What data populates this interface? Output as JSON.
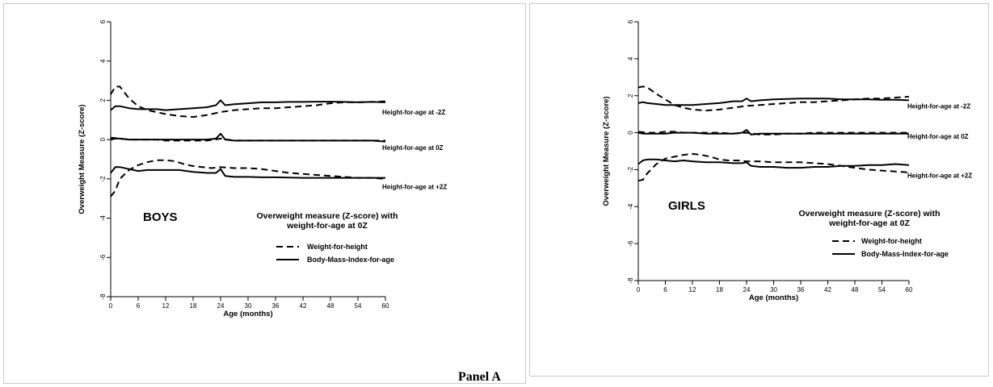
{
  "caption": "Panel A",
  "chart_data": [
    {
      "type": "line",
      "panel_label": "BOYS",
      "xlabel": "Age (months)",
      "ylabel": "Overweight Measure (Z-score)",
      "xlim": [
        0,
        60
      ],
      "ylim": [
        -8,
        6
      ],
      "xticks": [
        0,
        6,
        12,
        18,
        24,
        30,
        36,
        42,
        48,
        54,
        60
      ],
      "yticks": [
        -8,
        -6,
        -4,
        -2,
        0,
        2,
        4,
        6
      ],
      "legend": {
        "title": [
          "Overweight measure (Z-score) with",
          "weight-for-age at 0Z"
        ],
        "entries": [
          {
            "label": "Weight-for-height",
            "style": "dashed"
          },
          {
            "label": "Body-Mass-Index-for-age",
            "style": "solid"
          }
        ]
      },
      "curve_labels": [
        {
          "text": "Height-for-age at -2Z",
          "y": 1.4
        },
        {
          "text": "Height-for-age at 0Z",
          "y": -0.4
        },
        {
          "text": "Height-for-age at +2Z",
          "y": -2.4
        }
      ],
      "series": [
        {
          "style": "dashed",
          "x": [
            0,
            1,
            2,
            4,
            6,
            8,
            10,
            12,
            15,
            18,
            21,
            24,
            27,
            30,
            33,
            36,
            39,
            42,
            45,
            48,
            51,
            54,
            57,
            60
          ],
          "y": [
            2.3,
            2.7,
            2.7,
            2.1,
            1.7,
            1.5,
            1.4,
            1.3,
            1.2,
            1.15,
            1.25,
            1.4,
            1.5,
            1.55,
            1.6,
            1.6,
            1.65,
            1.7,
            1.75,
            1.85,
            1.9,
            1.9,
            1.92,
            1.95
          ]
        },
        {
          "style": "solid",
          "x": [
            0,
            1,
            2,
            4,
            6,
            8,
            10,
            12,
            15,
            18,
            21,
            23,
            24,
            25,
            27,
            30,
            33,
            36,
            39,
            42,
            45,
            48,
            51,
            54,
            57,
            60
          ],
          "y": [
            1.5,
            1.7,
            1.7,
            1.6,
            1.55,
            1.55,
            1.55,
            1.5,
            1.55,
            1.6,
            1.65,
            1.75,
            2.0,
            1.75,
            1.8,
            1.85,
            1.9,
            1.9,
            1.92,
            1.92,
            1.93,
            1.93,
            1.92,
            1.9,
            1.92,
            1.9
          ]
        },
        {
          "style": "dashed",
          "x": [
            0,
            2,
            4,
            6,
            8,
            10,
            12,
            15,
            18,
            21,
            24,
            27,
            30,
            33,
            36,
            39,
            42,
            45,
            48,
            51,
            54,
            57,
            60
          ],
          "y": [
            0.1,
            0.05,
            0.0,
            0.0,
            0.0,
            0.0,
            -0.05,
            -0.05,
            -0.05,
            -0.05,
            0.05,
            -0.05,
            -0.05,
            -0.05,
            -0.05,
            -0.05,
            -0.05,
            -0.05,
            -0.05,
            -0.05,
            -0.05,
            -0.05,
            -0.05
          ]
        },
        {
          "style": "solid",
          "x": [
            0,
            1,
            2,
            4,
            6,
            8,
            10,
            12,
            15,
            18,
            21,
            23,
            24,
            25,
            27,
            30,
            33,
            36,
            39,
            42,
            45,
            48,
            51,
            54,
            57,
            60
          ],
          "y": [
            0.0,
            0.05,
            0.05,
            0.0,
            0.0,
            0.0,
            0.0,
            0.0,
            0.0,
            0.0,
            0.0,
            0.05,
            0.3,
            0.0,
            -0.05,
            -0.05,
            -0.05,
            -0.05,
            -0.05,
            -0.05,
            -0.05,
            -0.05,
            -0.05,
            -0.05,
            -0.05,
            -0.1
          ]
        },
        {
          "style": "dashed",
          "x": [
            0,
            1,
            2,
            4,
            6,
            8,
            10,
            12,
            14,
            16,
            18,
            20,
            22,
            24,
            27,
            30,
            33,
            36,
            39,
            42,
            45,
            48,
            51,
            54,
            57,
            60
          ],
          "y": [
            -2.9,
            -2.6,
            -2.0,
            -1.55,
            -1.3,
            -1.15,
            -1.05,
            -1.05,
            -1.1,
            -1.25,
            -1.35,
            -1.4,
            -1.45,
            -1.4,
            -1.45,
            -1.45,
            -1.5,
            -1.6,
            -1.7,
            -1.75,
            -1.8,
            -1.85,
            -1.9,
            -1.95,
            -1.95,
            -2.0
          ]
        },
        {
          "style": "solid",
          "x": [
            0,
            1,
            2,
            4,
            6,
            8,
            10,
            12,
            15,
            18,
            21,
            23,
            24,
            25,
            27,
            30,
            33,
            36,
            39,
            42,
            45,
            48,
            51,
            54,
            57,
            60
          ],
          "y": [
            -1.7,
            -1.4,
            -1.4,
            -1.5,
            -1.6,
            -1.55,
            -1.55,
            -1.55,
            -1.55,
            -1.65,
            -1.7,
            -1.7,
            -1.5,
            -1.85,
            -1.9,
            -1.9,
            -1.92,
            -1.92,
            -1.93,
            -1.95,
            -1.95,
            -1.95,
            -1.95,
            -1.95,
            -1.95,
            -1.95
          ]
        }
      ]
    },
    {
      "type": "line",
      "panel_label": "GIRLS",
      "xlabel": "Age (months)",
      "ylabel": "Overweight Measure (Z-score)",
      "xlim": [
        0,
        60
      ],
      "ylim": [
        -8,
        6
      ],
      "xticks": [
        0,
        6,
        12,
        18,
        24,
        30,
        36,
        42,
        48,
        54,
        60
      ],
      "yticks": [
        -8,
        -6,
        -4,
        -2,
        0,
        2,
        4,
        6
      ],
      "legend": {
        "title": [
          "Overweight measure (Z-score) with",
          "weight-for-age at 0Z"
        ],
        "entries": [
          {
            "label": "Weight-for-height",
            "style": "dashed"
          },
          {
            "label": "Body-Mass-Index-for-age",
            "style": "solid"
          }
        ]
      },
      "curve_labels": [
        {
          "text": "Height-for-age at -2Z",
          "y": 1.45
        },
        {
          "text": "Height-for-age at 0Z",
          "y": -0.2
        },
        {
          "text": "Height-for-age at +2Z",
          "y": -2.3
        }
      ],
      "series": [
        {
          "style": "dashed",
          "x": [
            0,
            1,
            2,
            4,
            6,
            8,
            10,
            12,
            15,
            18,
            21,
            24,
            27,
            30,
            33,
            36,
            39,
            42,
            45,
            48,
            51,
            54,
            57,
            60
          ],
          "y": [
            2.45,
            2.5,
            2.45,
            2.1,
            1.8,
            1.5,
            1.35,
            1.25,
            1.2,
            1.25,
            1.35,
            1.45,
            1.5,
            1.55,
            1.6,
            1.65,
            1.65,
            1.7,
            1.75,
            1.8,
            1.85,
            1.85,
            1.9,
            1.95
          ]
        },
        {
          "style": "solid",
          "x": [
            0,
            1,
            2,
            4,
            6,
            8,
            10,
            12,
            15,
            18,
            21,
            23,
            24,
            25,
            27,
            30,
            33,
            36,
            39,
            42,
            45,
            48,
            51,
            54,
            57,
            60
          ],
          "y": [
            1.6,
            1.65,
            1.6,
            1.55,
            1.5,
            1.5,
            1.5,
            1.5,
            1.55,
            1.6,
            1.7,
            1.7,
            1.85,
            1.7,
            1.75,
            1.8,
            1.82,
            1.85,
            1.85,
            1.85,
            1.8,
            1.8,
            1.8,
            1.78,
            1.78,
            1.75
          ]
        },
        {
          "style": "dashed",
          "x": [
            0,
            2,
            4,
            6,
            8,
            10,
            12,
            15,
            18,
            21,
            24,
            27,
            30,
            33,
            36,
            39,
            42,
            45,
            48,
            51,
            54,
            57,
            60
          ],
          "y": [
            0.05,
            0.0,
            0.0,
            0.05,
            0.05,
            0.0,
            0.0,
            0.0,
            0.0,
            -0.05,
            0.0,
            -0.1,
            -0.1,
            -0.05,
            -0.05,
            0.0,
            0.0,
            0.0,
            0.0,
            0.0,
            0.0,
            0.0,
            0.0
          ]
        },
        {
          "style": "solid",
          "x": [
            0,
            1,
            2,
            4,
            6,
            8,
            10,
            12,
            15,
            18,
            21,
            23,
            24,
            25,
            27,
            30,
            33,
            36,
            39,
            42,
            45,
            48,
            51,
            54,
            57,
            60
          ],
          "y": [
            0.0,
            -0.05,
            -0.05,
            -0.05,
            -0.05,
            0.0,
            0.0,
            0.0,
            -0.05,
            -0.05,
            -0.05,
            0.0,
            0.15,
            -0.1,
            -0.05,
            -0.05,
            -0.05,
            -0.05,
            -0.05,
            -0.05,
            -0.05,
            -0.05,
            -0.05,
            -0.05,
            -0.05,
            -0.05
          ]
        },
        {
          "style": "dashed",
          "x": [
            0,
            1,
            2,
            4,
            6,
            8,
            10,
            12,
            14,
            16,
            18,
            20,
            22,
            24,
            27,
            30,
            33,
            36,
            39,
            42,
            45,
            48,
            51,
            54,
            57,
            60
          ],
          "y": [
            -2.6,
            -2.55,
            -2.2,
            -1.7,
            -1.4,
            -1.3,
            -1.2,
            -1.15,
            -1.2,
            -1.3,
            -1.45,
            -1.5,
            -1.5,
            -1.55,
            -1.55,
            -1.6,
            -1.6,
            -1.6,
            -1.65,
            -1.7,
            -1.8,
            -1.9,
            -2.0,
            -2.05,
            -2.1,
            -2.15
          ]
        },
        {
          "style": "solid",
          "x": [
            0,
            1,
            2,
            4,
            6,
            8,
            10,
            12,
            15,
            18,
            21,
            23,
            24,
            25,
            27,
            30,
            33,
            36,
            39,
            42,
            45,
            48,
            51,
            54,
            57,
            60
          ],
          "y": [
            -1.7,
            -1.5,
            -1.45,
            -1.45,
            -1.5,
            -1.55,
            -1.5,
            -1.55,
            -1.6,
            -1.6,
            -1.65,
            -1.65,
            -1.6,
            -1.8,
            -1.85,
            -1.85,
            -1.9,
            -1.9,
            -1.85,
            -1.85,
            -1.8,
            -1.8,
            -1.75,
            -1.75,
            -1.7,
            -1.75
          ]
        }
      ]
    }
  ]
}
